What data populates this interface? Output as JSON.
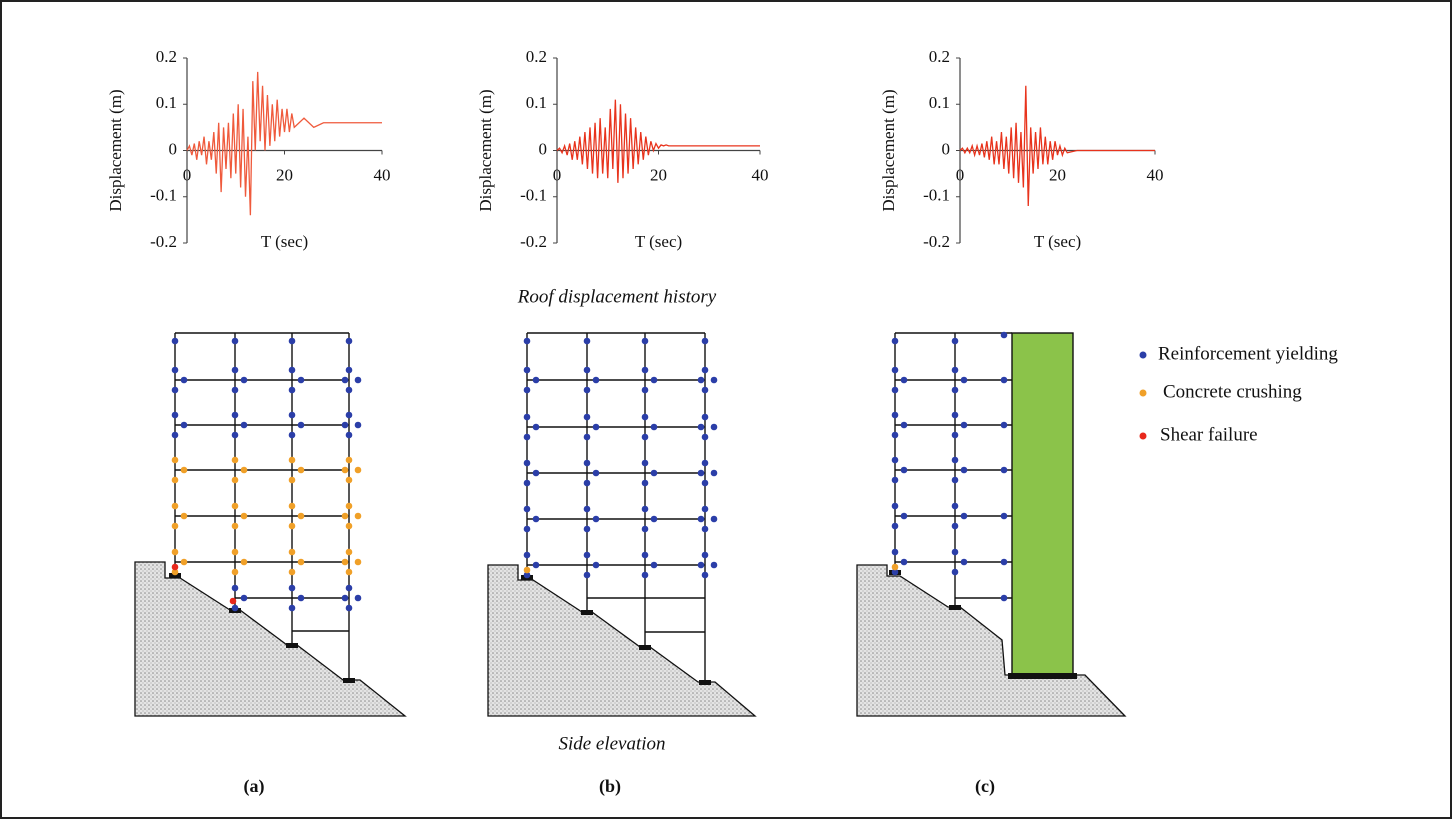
{
  "chart_data": [
    {
      "type": "line",
      "xlabel": "T (sec)",
      "ylabel": "Displacement (m)",
      "x": [
        0,
        0.5,
        1,
        1.5,
        2,
        2.5,
        3,
        3.5,
        4,
        4.5,
        5,
        5.5,
        6,
        6.5,
        7,
        7.5,
        8,
        8.5,
        9,
        9.5,
        10,
        10.5,
        11,
        11.5,
        12,
        12.5,
        13,
        13.5,
        14,
        14.5,
        15,
        15.5,
        16,
        16.5,
        17,
        17.5,
        18,
        18.5,
        19,
        19.5,
        20,
        20.5,
        21,
        21.5,
        22,
        24,
        26,
        28,
        30,
        35,
        40
      ],
      "series": [
        {
          "color": "#ef5a3c",
          "values": [
            0,
            0.01,
            -0.01,
            0.015,
            -0.02,
            0.02,
            -0.01,
            0.03,
            -0.03,
            0.02,
            -0.02,
            0.04,
            -0.05,
            0.06,
            -0.09,
            0.05,
            -0.04,
            0.06,
            -0.06,
            0.08,
            -0.05,
            0.1,
            -0.08,
            0.09,
            -0.1,
            0.03,
            -0.14,
            0.15,
            0.0,
            0.17,
            0.02,
            0.14,
            0.0,
            0.12,
            0.01,
            0.1,
            0.02,
            0.11,
            0.03,
            0.09,
            0.04,
            0.09,
            0.04,
            0.08,
            0.05,
            0.07,
            0.05,
            0.06,
            0.06,
            0.06,
            0.06
          ]
        }
      ],
      "xlim": [
        0,
        40
      ],
      "xticks": [
        0,
        20,
        40
      ],
      "ylim": [
        -0.2,
        0.2
      ],
      "yticks": [
        -0.2,
        -0.1,
        0,
        0.1,
        0.2
      ]
    },
    {
      "type": "line",
      "xlabel": "T (sec)",
      "ylabel": "Displacement (m)",
      "x": [
        0,
        0.5,
        1,
        1.5,
        2,
        2.5,
        3,
        3.5,
        4,
        4.5,
        5,
        5.5,
        6,
        6.5,
        7,
        7.5,
        8,
        8.5,
        9,
        9.5,
        10,
        10.5,
        11,
        11.5,
        12,
        12.5,
        13,
        13.5,
        14,
        14.5,
        15,
        15.5,
        16,
        16.5,
        17,
        17.5,
        18,
        18.5,
        19,
        19.5,
        20,
        20.5,
        21,
        21.5,
        22,
        24,
        26,
        28,
        30,
        35,
        40
      ],
      "series": [
        {
          "color": "#e8331c",
          "values": [
            0,
            0.005,
            -0.005,
            0.01,
            -0.01,
            0.015,
            -0.02,
            0.02,
            -0.02,
            0.03,
            -0.03,
            0.04,
            -0.04,
            0.05,
            -0.05,
            0.06,
            -0.06,
            0.07,
            -0.05,
            0.05,
            -0.06,
            0.09,
            -0.04,
            0.11,
            -0.07,
            0.1,
            -0.06,
            0.08,
            -0.05,
            0.07,
            -0.04,
            0.05,
            -0.03,
            0.04,
            -0.02,
            0.03,
            -0.01,
            0.02,
            0.0,
            0.015,
            0.005,
            0.012,
            0.01,
            0.012,
            0.01,
            0.01,
            0.01,
            0.01,
            0.01,
            0.01,
            0.01
          ]
        }
      ],
      "xlim": [
        0,
        40
      ],
      "xticks": [
        0,
        20,
        40
      ],
      "ylim": [
        -0.2,
        0.2
      ],
      "yticks": [
        -0.2,
        -0.1,
        0,
        0.1,
        0.2
      ]
    },
    {
      "type": "line",
      "xlabel": "T (sec)",
      "ylabel": "Displacement (m)",
      "x": [
        0,
        0.5,
        1,
        1.5,
        2,
        2.5,
        3,
        3.5,
        4,
        4.5,
        5,
        5.5,
        6,
        6.5,
        7,
        7.5,
        8,
        8.5,
        9,
        9.5,
        10,
        10.5,
        11,
        11.5,
        12,
        12.5,
        13,
        13.5,
        14,
        14.5,
        15,
        15.5,
        16,
        16.5,
        17,
        17.5,
        18,
        18.5,
        19,
        19.5,
        20,
        20.5,
        21,
        21.5,
        22,
        24,
        26,
        28,
        30,
        35,
        40
      ],
      "series": [
        {
          "color": "#e8331c",
          "values": [
            0,
            0.005,
            -0.005,
            0.005,
            -0.005,
            0.01,
            -0.01,
            0.01,
            -0.01,
            0.015,
            -0.015,
            0.02,
            -0.02,
            0.03,
            -0.03,
            0.02,
            -0.03,
            0.04,
            -0.04,
            0.03,
            -0.05,
            0.05,
            -0.06,
            0.06,
            -0.07,
            0.04,
            -0.08,
            0.14,
            -0.12,
            0.05,
            -0.05,
            0.04,
            -0.04,
            0.05,
            -0.03,
            0.03,
            -0.03,
            0.02,
            -0.02,
            0.02,
            -0.01,
            0.01,
            -0.01,
            0.005,
            -0.005,
            0,
            0,
            0,
            0,
            0,
            0
          ]
        }
      ],
      "xlim": [
        0,
        40
      ],
      "xticks": [
        0,
        20,
        40
      ],
      "ylim": [
        -0.2,
        0.2
      ],
      "yticks": [
        -0.2,
        -0.1,
        0,
        0.1,
        0.2
      ]
    }
  ],
  "captions": {
    "top": "Roof displacement history",
    "bottom": "Side elevation"
  },
  "panels": [
    "(a)",
    "(b)",
    "(c)"
  ],
  "legend": [
    "Reinforcement yielding",
    "Concrete crushing",
    "Shear failure"
  ]
}
